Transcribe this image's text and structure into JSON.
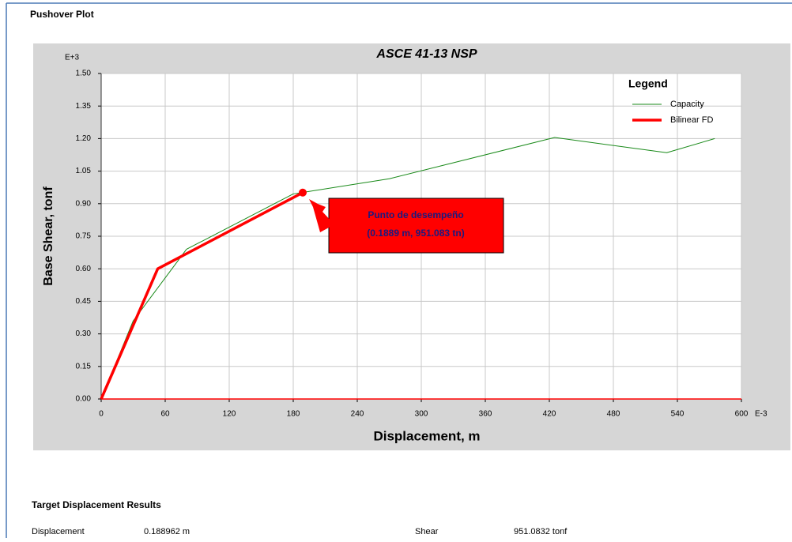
{
  "window_title": "Pushover Plot",
  "chart_data": {
    "type": "line",
    "title": "ASCE 41-13 NSP",
    "xlabel": "Displacement, m",
    "ylabel": "Base Shear, tonf",
    "x_multiplier": "E-3",
    "y_multiplier": "E+3",
    "xlim": [
      0,
      600
    ],
    "xticks": [
      0,
      60,
      120,
      180,
      240,
      300,
      360,
      420,
      480,
      540,
      600
    ],
    "ylim": [
      0,
      1.5
    ],
    "yticks": [
      {
        "value": 0,
        "label": "0.00"
      },
      {
        "value": 0.15,
        "label": "0.15"
      },
      {
        "value": 0.3,
        "label": "0.30"
      },
      {
        "value": 0.45,
        "label": "0.45"
      },
      {
        "value": 0.6,
        "label": "0.60"
      },
      {
        "value": 0.75,
        "label": "0.75"
      },
      {
        "value": 0.9,
        "label": "0.90"
      },
      {
        "value": 1.05,
        "label": "1.05"
      },
      {
        "value": 1.2,
        "label": "1.20"
      },
      {
        "value": 1.35,
        "label": "1.35"
      },
      {
        "value": 1.5,
        "label": "1.50"
      }
    ],
    "grid": true,
    "legend_title": "Legend",
    "legend": "upper right",
    "series": [
      {
        "name": "Capacity",
        "color": "#1a8a1a",
        "x": [
          0,
          30,
          80,
          180,
          270,
          425,
          530,
          575
        ],
        "values": [
          0,
          0.36,
          0.69,
          0.945,
          1.015,
          1.205,
          1.135,
          1.2
        ]
      },
      {
        "name": "Bilinear FD",
        "color": "#ff0000",
        "x": [
          0,
          53,
          188.9
        ],
        "values": [
          0,
          0.6,
          0.951083
        ]
      }
    ],
    "target_point": {
      "x": 188.9,
      "y": 0.951083,
      "color": "#ff0000"
    },
    "annotations": [
      "Punto de desempeño",
      "(0.1889 m, 951.083 tn)"
    ]
  },
  "results": {
    "title": "Target Displacement Results",
    "rows": [
      [
        "Displacement",
        "0.188962 m",
        "Shear",
        "951.0832 tonf"
      ]
    ]
  }
}
